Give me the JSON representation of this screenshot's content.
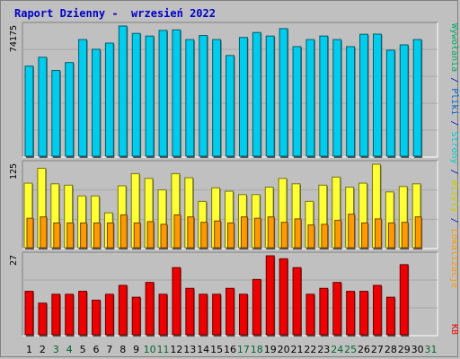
{
  "title": "Raport Dzienny -  wrzesień 2022",
  "colors": {
    "pages": "#00ccee",
    "hits": "#ffff33",
    "files": "#ff9900",
    "kb": "#ee0000",
    "day_weekday": "#000000",
    "day_weekend": "#006633"
  },
  "right_labels": {
    "top": [
      {
        "text": "Wywołania",
        "color": "#00aa66"
      },
      {
        "text": " / ",
        "color": "#0000cc"
      },
      {
        "text": "Pliki",
        "color": "#0066cc"
      },
      {
        "text": " / ",
        "color": "#0000cc"
      },
      {
        "text": "Strony",
        "color": "#00cccc"
      },
      {
        "text": " / ",
        "color": "#0000cc"
      },
      {
        "text": "Wizyty",
        "color": "#cccc00"
      },
      {
        "text": " / ",
        "color": "#0000cc"
      },
      {
        "text": "Lokalizacje",
        "color": "#ff9900"
      }
    ],
    "bottom": {
      "text": "KB",
      "color": "#ee0000"
    }
  },
  "chart_data": {
    "type": "bar",
    "x": [
      "1",
      "2",
      "3",
      "4",
      "5",
      "6",
      "7",
      "8",
      "9",
      "10",
      "11",
      "12",
      "13",
      "14",
      "15",
      "16",
      "17",
      "18",
      "19",
      "20",
      "21",
      "22",
      "23",
      "24",
      "25",
      "26",
      "27",
      "28",
      "29",
      "30",
      "31"
    ],
    "weekend_days": [
      "3",
      "4",
      "10",
      "11",
      "17",
      "18",
      "24",
      "25",
      "31"
    ],
    "panels": [
      {
        "name": "top",
        "max_label": "74175",
        "ymax": 74175,
        "series": [
          {
            "key": "pages",
            "values": [
              51500,
              56500,
              49000,
              53500,
              66500,
              61000,
              64500,
              74175,
              70000,
              68500,
              71700,
              72000,
              66500,
              68800,
              66500,
              57500,
              67700,
              70500,
              68500,
              72700,
              62500,
              66500,
              68500,
              66500,
              62500,
              69500,
              69600,
              60500,
              63500,
              66500,
              null
            ]
          }
        ]
      },
      {
        "name": "middle",
        "max_label": "125",
        "ymax": 125,
        "series": [
          {
            "key": "hits",
            "values": [
              97,
              119,
              96,
              94,
              78,
              78,
              53,
              93,
              111,
              104,
              87,
              111,
              105,
              70,
              90,
              85,
              80,
              80,
              91,
              104,
              96,
              70,
              94,
              106,
              91,
              97,
              125,
              84,
              92,
              96,
              null
            ]
          },
          {
            "key": "files",
            "values": [
              45,
              47,
              38,
              38,
              38,
              38,
              38,
              50,
              38,
              40,
              36,
              50,
              47,
              39,
              41,
              38,
              47,
              45,
              47,
              39,
              44,
              35,
              36,
              42,
              51,
              38,
              44,
              38,
              39,
              47,
              null
            ]
          }
        ]
      },
      {
        "name": "bottom",
        "max_label": "27",
        "ymax": 27,
        "series": [
          {
            "key": "kb",
            "values": [
              15,
              11,
              14,
              14,
              15,
              12,
              14,
              17,
              13,
              18,
              14,
              23,
              16,
              14,
              14,
              16,
              14,
              19,
              27,
              26,
              23,
              14,
              16,
              18,
              15,
              15,
              17,
              13,
              24,
              null,
              null
            ]
          }
        ]
      }
    ]
  }
}
